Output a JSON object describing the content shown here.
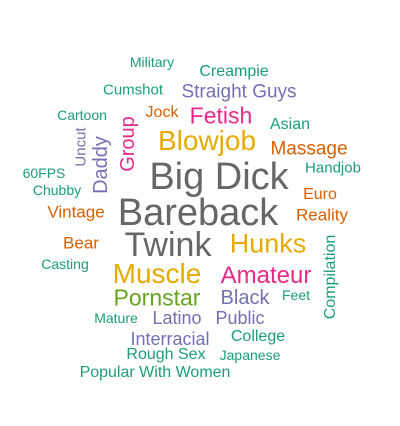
{
  "colors": {
    "teal": "#1b9e77",
    "orange": "#d95f02",
    "purple": "#7570b3",
    "magenta": "#e7298a",
    "green": "#66a61e",
    "gold": "#e6ab02",
    "gray": "#666666"
  },
  "tags": [
    {
      "text": "Military",
      "color": "teal",
      "weight": 1
    },
    {
      "text": "Creampie",
      "color": "teal",
      "weight": 2
    },
    {
      "text": "Cumshot",
      "color": "teal",
      "weight": 2
    },
    {
      "text": "Straight Guys",
      "color": "purple",
      "weight": 3
    },
    {
      "text": "Cartoon",
      "color": "teal",
      "weight": 1
    },
    {
      "text": "Jock",
      "color": "orange",
      "weight": 2
    },
    {
      "text": "Fetish",
      "color": "magenta",
      "weight": 4
    },
    {
      "text": "Asian",
      "color": "teal",
      "weight": 2
    },
    {
      "text": "Uncut",
      "color": "purple",
      "weight": 2
    },
    {
      "text": "Group",
      "color": "magenta",
      "weight": 3
    },
    {
      "text": "Blowjob",
      "color": "gold",
      "weight": 5
    },
    {
      "text": "Massage",
      "color": "orange",
      "weight": 3
    },
    {
      "text": "Daddy",
      "color": "purple",
      "weight": 3
    },
    {
      "text": "Handjob",
      "color": "teal",
      "weight": 2
    },
    {
      "text": "60FPS",
      "color": "teal",
      "weight": 1
    },
    {
      "text": "Big Dick",
      "color": "gray",
      "weight": 7
    },
    {
      "text": "Chubby",
      "color": "teal",
      "weight": 1
    },
    {
      "text": "Euro",
      "color": "orange",
      "weight": 2
    },
    {
      "text": "Vintage",
      "color": "orange",
      "weight": 2
    },
    {
      "text": "Bareback",
      "color": "gray",
      "weight": 7
    },
    {
      "text": "Reality",
      "color": "orange",
      "weight": 2
    },
    {
      "text": "Twink",
      "color": "gray",
      "weight": 6
    },
    {
      "text": "Hunks",
      "color": "gold",
      "weight": 5
    },
    {
      "text": "Bear",
      "color": "orange",
      "weight": 2
    },
    {
      "text": "Compilation",
      "color": "teal",
      "weight": 2
    },
    {
      "text": "Casting",
      "color": "teal",
      "weight": 1
    },
    {
      "text": "Muscle",
      "color": "gold",
      "weight": 5
    },
    {
      "text": "Amateur",
      "color": "magenta",
      "weight": 4
    },
    {
      "text": "Pornstar",
      "color": "green",
      "weight": 4
    },
    {
      "text": "Black",
      "color": "purple",
      "weight": 3
    },
    {
      "text": "Feet",
      "color": "teal",
      "weight": 1
    },
    {
      "text": "Mature",
      "color": "teal",
      "weight": 1
    },
    {
      "text": "Latino",
      "color": "purple",
      "weight": 3
    },
    {
      "text": "Public",
      "color": "purple",
      "weight": 3
    },
    {
      "text": "Interracial",
      "color": "purple",
      "weight": 3
    },
    {
      "text": "College",
      "color": "teal",
      "weight": 2
    },
    {
      "text": "Rough Sex",
      "color": "teal",
      "weight": 2
    },
    {
      "text": "Japanese",
      "color": "teal",
      "weight": 1
    },
    {
      "text": "Popular With Women",
      "color": "teal",
      "weight": 2
    }
  ]
}
